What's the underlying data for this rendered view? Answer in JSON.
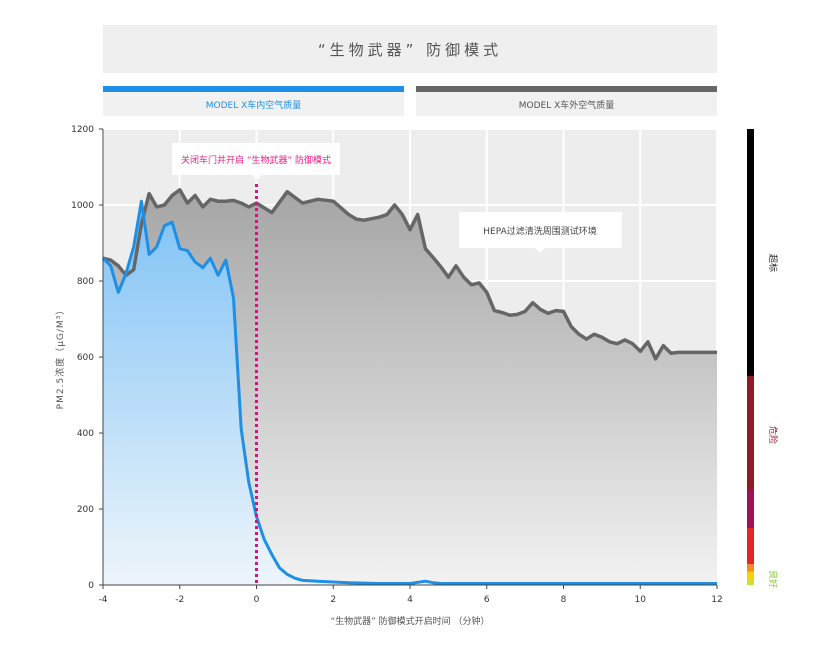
{
  "title": "“生物武器” 防御模式",
  "legend": {
    "inside": {
      "label": "MODEL X车内空气质量",
      "color": "#1e8fe6"
    },
    "outside": {
      "label": "MODEL X车外空气质量",
      "color": "#666666"
    }
  },
  "annotations": {
    "door_close": "关闭车门并开启 “生物武器” 防御模式",
    "hepa_test": "HEPA过滤清洗周围测试环境"
  },
  "aqi_scale": {
    "labels": {
      "hazardous": "超标",
      "danger": "危险",
      "good": "良好"
    },
    "bands": [
      {
        "from": 0,
        "to": 12,
        "color": "#c6e03a"
      },
      {
        "from": 12,
        "to": 35,
        "color": "#f5d200"
      },
      {
        "from": 35,
        "to": 55,
        "color": "#f28c1c"
      },
      {
        "from": 55,
        "to": 150,
        "color": "#e8242b"
      },
      {
        "from": 150,
        "to": 250,
        "color": "#a0105a"
      },
      {
        "from": 250,
        "to": 550,
        "color": "#8f1c24"
      },
      {
        "from": 550,
        "to": 1200,
        "color": "#000000"
      }
    ],
    "label_colors": {
      "hazardous": "#222222",
      "danger": "#9b1c3a",
      "good": "#8cc63f"
    }
  },
  "chart_data": {
    "type": "area",
    "title": "“生物武器” 防御模式",
    "xlabel": "“生物武器” 防御模式开启时间 （分钟）",
    "ylabel": "PM2.5浓度（μG/M³）",
    "xlim": [
      -4,
      12
    ],
    "ylim": [
      0,
      1200
    ],
    "xticks": [
      -4,
      -2,
      0,
      2,
      4,
      6,
      8,
      10,
      12
    ],
    "yticks": [
      0,
      200,
      400,
      600,
      800,
      1000,
      1200
    ],
    "grid": true,
    "door_close_x": 0,
    "series": [
      {
        "name": "MODEL X车外空气质量",
        "color": "#666666",
        "x": [
          -4,
          -3.8,
          -3.6,
          -3.4,
          -3.2,
          -3.0,
          -2.8,
          -2.6,
          -2.4,
          -2.2,
          -2.0,
          -1.8,
          -1.6,
          -1.4,
          -1.2,
          -1.0,
          -0.8,
          -0.6,
          -0.4,
          -0.2,
          0,
          0.4,
          0.8,
          1.2,
          1.6,
          2.0,
          2.4,
          2.6,
          2.8,
          3.2,
          3.4,
          3.6,
          3.8,
          4.0,
          4.2,
          4.4,
          4.6,
          4.8,
          5.0,
          5.2,
          5.4,
          5.6,
          5.8,
          6.0,
          6.2,
          6.4,
          6.6,
          6.8,
          7.0,
          7.2,
          7.4,
          7.6,
          7.8,
          8.0,
          8.2,
          8.4,
          8.6,
          8.8,
          9.0,
          9.2,
          9.4,
          9.6,
          9.8,
          10.0,
          10.2,
          10.4,
          10.6,
          10.8,
          11.0,
          11.2,
          11.4,
          11.6,
          11.8,
          12.0
        ],
        "values": [
          860,
          855,
          840,
          815,
          830,
          950,
          1030,
          995,
          1000,
          1025,
          1040,
          1005,
          1025,
          995,
          1015,
          1010,
          1010,
          1012,
          1005,
          995,
          1005,
          980,
          1035,
          1005,
          1015,
          1010,
          975,
          963,
          960,
          968,
          975,
          1000,
          975,
          935,
          975,
          885,
          862,
          838,
          810,
          840,
          810,
          790,
          795,
          770,
          722,
          717,
          710,
          712,
          720,
          743,
          725,
          715,
          722,
          720,
          680,
          660,
          647,
          660,
          652,
          640,
          635,
          645,
          635,
          615,
          640,
          595,
          630,
          610,
          612,
          612,
          612,
          612,
          612,
          612
        ]
      },
      {
        "name": "MODEL X车内空气质量",
        "color": "#1e8fe6",
        "x": [
          -4,
          -3.8,
          -3.6,
          -3.4,
          -3.2,
          -3.0,
          -2.8,
          -2.6,
          -2.4,
          -2.2,
          -2.0,
          -1.8,
          -1.6,
          -1.4,
          -1.2,
          -1.0,
          -0.8,
          -0.6,
          -0.4,
          -0.2,
          0,
          0.2,
          0.4,
          0.6,
          0.8,
          1.0,
          1.2,
          1.6,
          2.0,
          2.4,
          2.8,
          3.2,
          3.6,
          4.0,
          4.4,
          4.6,
          4.8,
          5.2,
          6.0,
          7.0,
          8.0,
          9.0,
          10.0,
          11.0,
          12.0
        ],
        "values": [
          860,
          840,
          770,
          820,
          890,
          1010,
          870,
          890,
          945,
          955,
          885,
          880,
          850,
          835,
          860,
          815,
          855,
          755,
          410,
          270,
          180,
          120,
          80,
          45,
          28,
          18,
          12,
          10,
          8,
          6,
          5,
          4,
          4,
          4,
          10,
          6,
          4,
          4,
          4,
          4,
          4,
          4,
          4,
          4,
          4
        ]
      }
    ]
  }
}
